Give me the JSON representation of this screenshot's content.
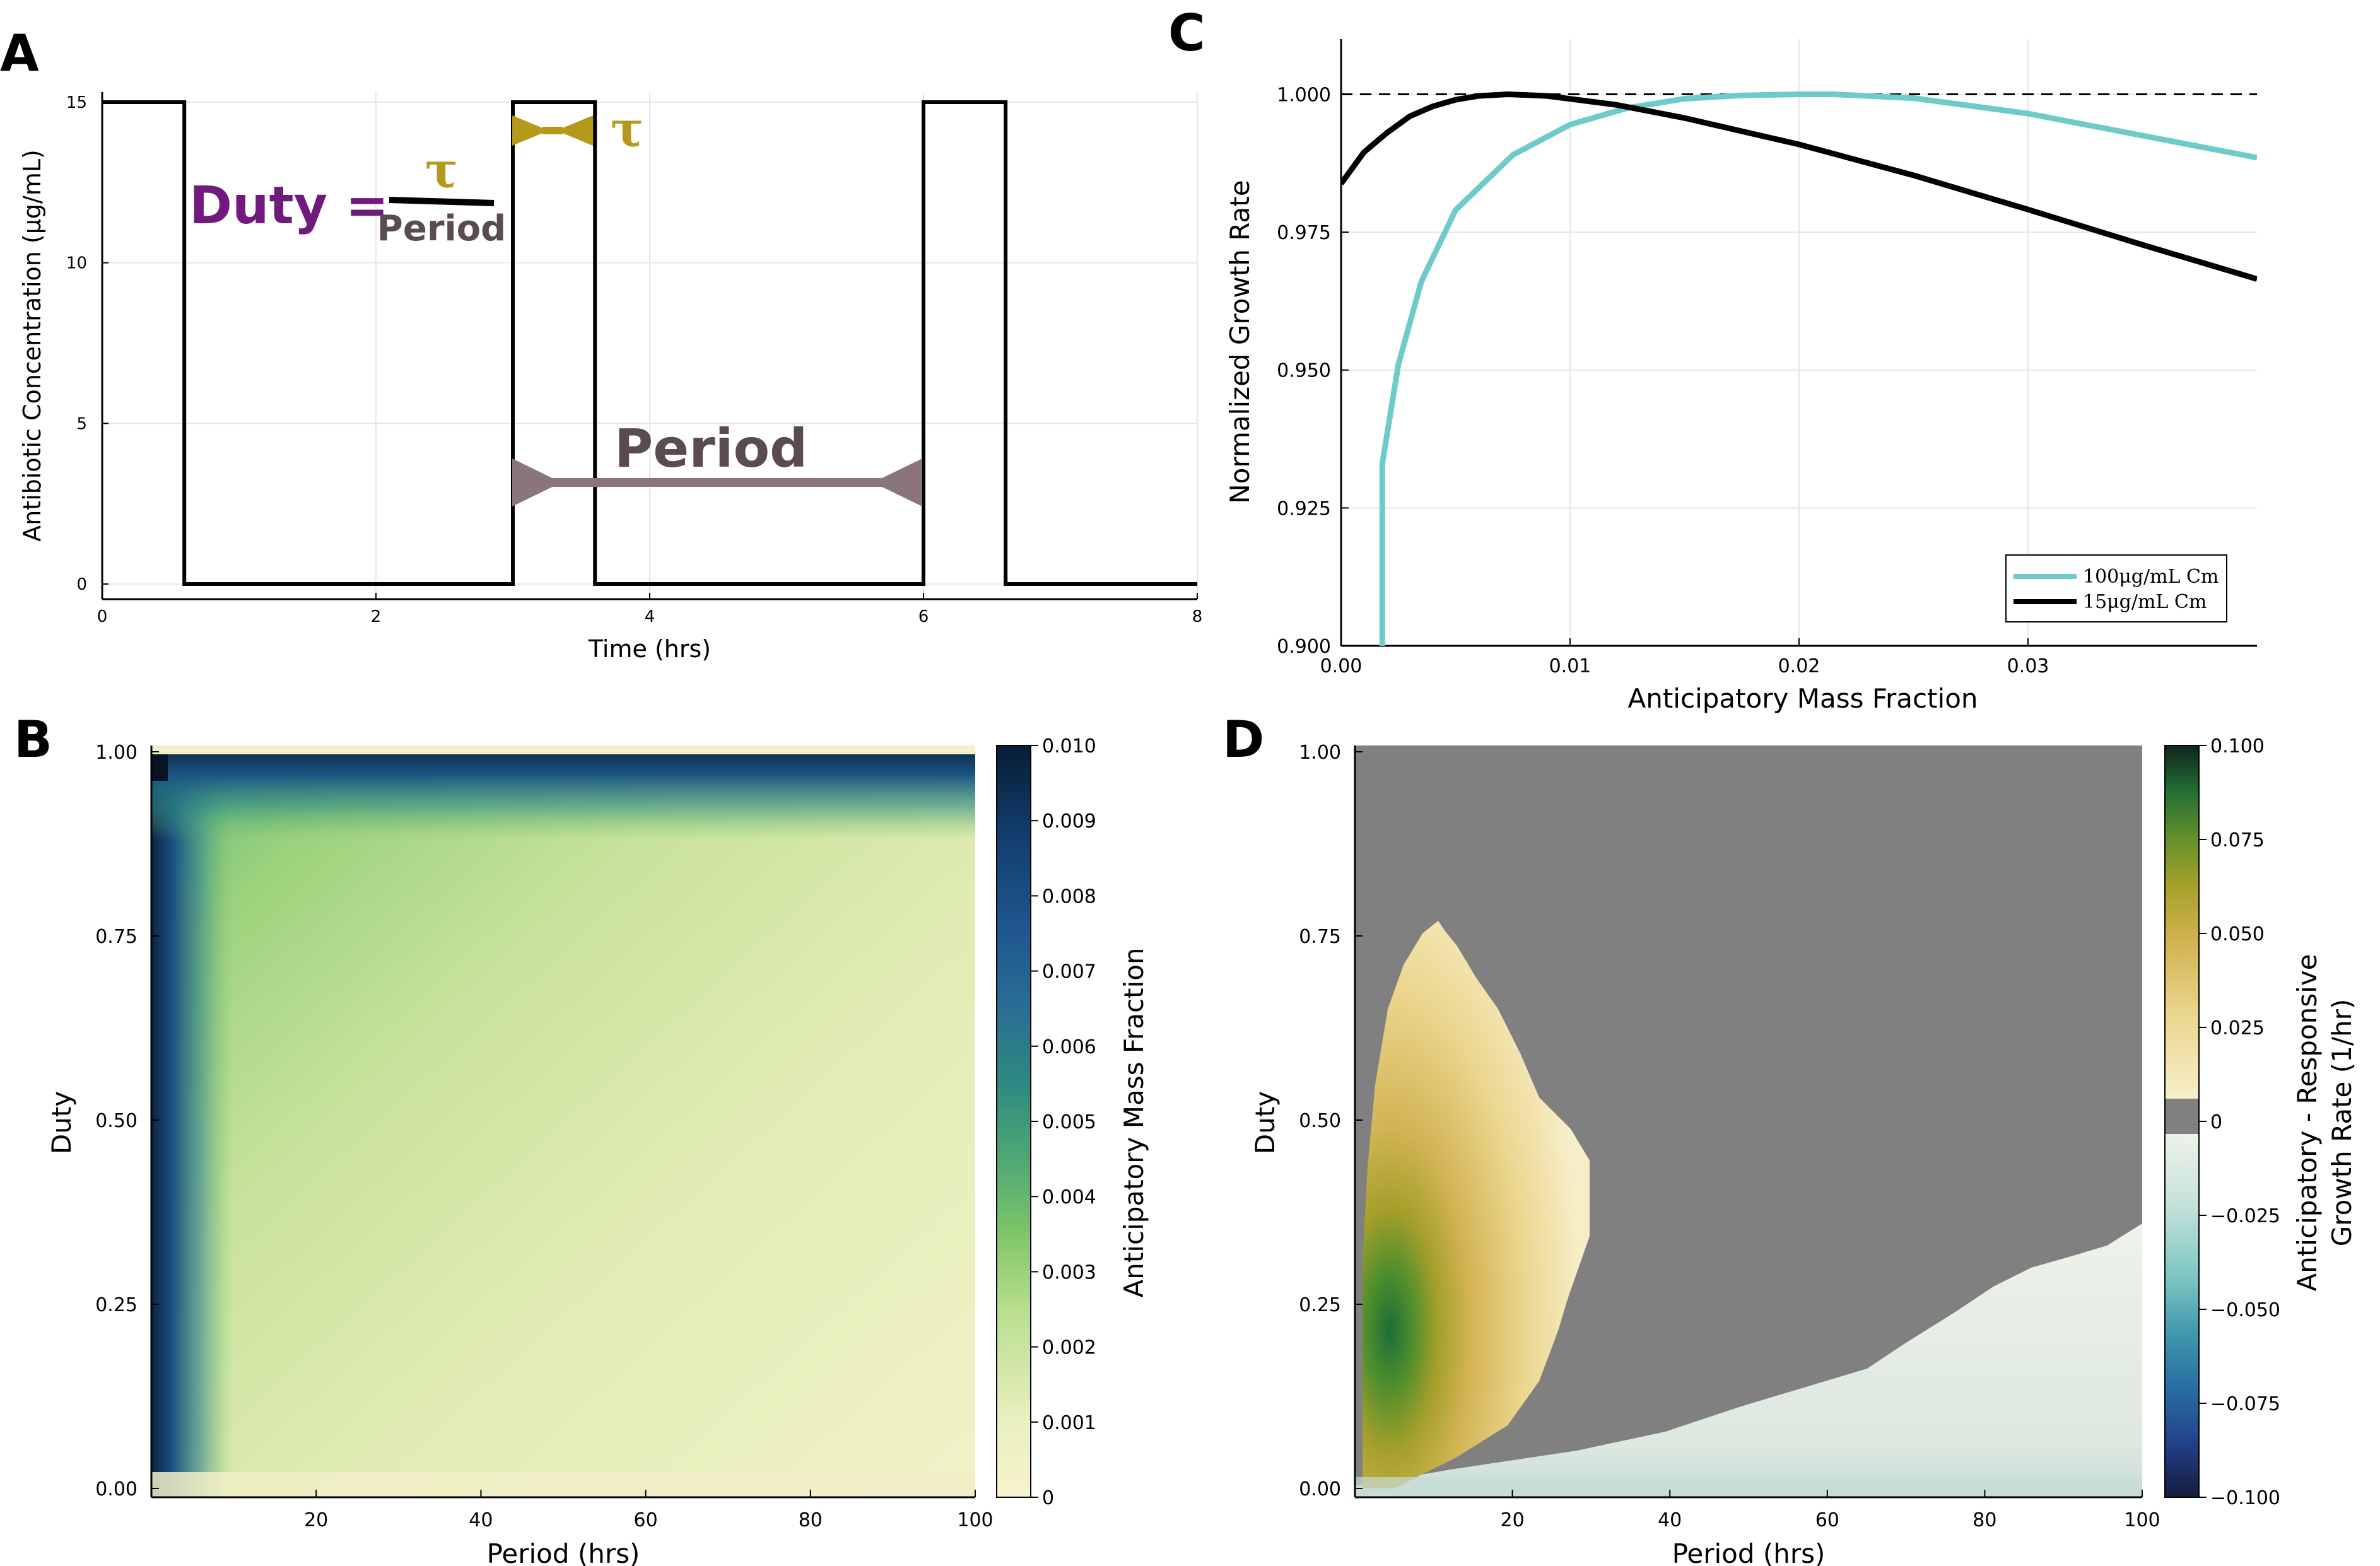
{
  "colors": {
    "square_wave": "#000000",
    "duty_text": "#701a7e",
    "period_text": "#5a4a52",
    "tau": "#b5991b",
    "period_arrow": "#8a757f",
    "cm100": "#6fcbc9",
    "cm15": "#000000",
    "nan_gray": "#808080"
  },
  "panels": {
    "A": {
      "label": "A",
      "annotations": {
        "duty": "Duty =",
        "tau_fraction": "τ",
        "period_denominator": "Period",
        "tau": "τ",
        "period": "Period"
      }
    },
    "B": {
      "label": "B"
    },
    "C": {
      "label": "C"
    },
    "D": {
      "label": "D"
    }
  },
  "chart_data": [
    {
      "id": "A",
      "type": "line",
      "xlabel": "Time (hrs)",
      "ylabel": "Antibiotic Concentration (μg/mL)",
      "xlim": [
        0,
        8
      ],
      "ylim": [
        0,
        15
      ],
      "xticks": [
        0,
        2,
        4,
        6,
        8
      ],
      "yticks": [
        0,
        5,
        10,
        15
      ],
      "series": [
        {
          "x": [
            0,
            0.6,
            0.6,
            3.0,
            3.0,
            3.6,
            3.6,
            6.0,
            6.0,
            6.6,
            6.6,
            8.0
          ],
          "y": [
            15,
            15,
            0,
            0,
            15,
            15,
            0,
            0,
            15,
            15,
            0,
            0
          ]
        }
      ]
    },
    {
      "id": "B",
      "type": "heatmap",
      "xlabel": "Period (hrs)",
      "ylabel": "Duty",
      "xlim": [
        0,
        100
      ],
      "ylim": [
        0,
        1
      ],
      "xticks": [
        20,
        40,
        60,
        80,
        100
      ],
      "yticks": [
        "0.00",
        "0.25",
        "0.50",
        "0.75",
        "1.00"
      ],
      "colorbar_label": "Anticipatory Mass Fraction",
      "colorbar_range": [
        0,
        0.01
      ],
      "colorbar_ticks": [
        "0.010",
        "0.009",
        "0.008",
        "0.007",
        "0.006",
        "0.005",
        "0.004",
        "0.003",
        "0.002",
        "0.001",
        "0"
      ]
    },
    {
      "id": "C",
      "type": "line",
      "xlabel": "Anticipatory Mass Fraction",
      "ylabel": "Normalized Growth Rate",
      "xlim": [
        0,
        0.04
      ],
      "ylim": [
        0.9,
        1.01
      ],
      "xticks": [
        "0.00",
        "0.01",
        "0.02",
        "0.03"
      ],
      "yticks": [
        "0.900",
        "0.925",
        "0.950",
        "0.975",
        "1.000"
      ],
      "reference_line_y": 1.0,
      "legend_position": "bottom-right",
      "series": [
        {
          "name": "100μg/mL Cm",
          "x": [
            0.0018,
            0.0018,
            0.0025,
            0.0035,
            0.005,
            0.0075,
            0.01,
            0.0125,
            0.015,
            0.0175,
            0.02,
            0.0215,
            0.025,
            0.03,
            0.035,
            0.04
          ],
          "y": [
            0.9,
            0.933,
            0.951,
            0.966,
            0.979,
            0.989,
            0.9945,
            0.9975,
            0.9992,
            0.9998,
            1.0,
            1.0,
            0.9993,
            0.9965,
            0.9925,
            0.9885
          ]
        },
        {
          "name": "15μg/mL Cm",
          "x": [
            0.0,
            0.001,
            0.002,
            0.003,
            0.004,
            0.005,
            0.006,
            0.0073,
            0.009,
            0.012,
            0.015,
            0.02,
            0.025,
            0.03,
            0.035,
            0.04
          ],
          "y": [
            0.9838,
            0.9895,
            0.993,
            0.996,
            0.9978,
            0.999,
            0.9997,
            1.0,
            0.9997,
            0.9981,
            0.9957,
            0.9909,
            0.9853,
            0.9791,
            0.9727,
            0.9665
          ]
        }
      ]
    },
    {
      "id": "D",
      "type": "heatmap",
      "xlabel": "Period (hrs)",
      "ylabel": "Duty",
      "xlim": [
        0,
        100
      ],
      "ylim": [
        0,
        1
      ],
      "xticks": [
        20,
        40,
        60,
        80,
        100
      ],
      "yticks": [
        "0.00",
        "0.25",
        "0.50",
        "0.75",
        "1.00"
      ],
      "colorbar_label": "Anticipatory - Responsive Growth Rate (1/hr)",
      "colorbar_label_lines": [
        "Anticipatory - Responsive",
        "Growth Rate (1/hr)"
      ],
      "colorbar_range": [
        -0.1,
        0.1
      ],
      "colorbar_ticks": [
        "0.100",
        "0.075",
        "0.050",
        "0.025",
        "0",
        "−0.025",
        "−0.050",
        "−0.075",
        "−0.100"
      ]
    }
  ]
}
